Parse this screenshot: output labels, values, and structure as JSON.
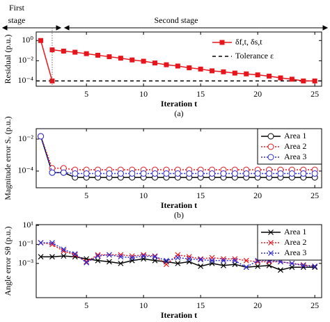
{
  "chart_data": [
    {
      "type": "line",
      "panel_label": "(a)",
      "xlabel": "Iteration t",
      "ylabel": "Residual (p.u.)",
      "annotations": [
        "First",
        "stage",
        "Second stage"
      ],
      "stage_boundary": 2,
      "log_y": true,
      "xlim": [
        0.6,
        25.6
      ],
      "xticks": [
        5,
        10,
        15,
        20,
        25
      ],
      "ylim": [
        3e-05,
        7
      ],
      "yticks": [
        {
          "value": 1,
          "label": "10⁰"
        },
        {
          "value": 0.01,
          "label": "10⁻²"
        },
        {
          "value": 0.0001,
          "label": "10⁻⁴"
        }
      ],
      "legend": "upper right",
      "x": [
        1,
        2,
        2,
        2,
        3,
        4,
        5,
        6,
        7,
        8,
        9,
        10,
        11,
        12,
        13,
        14,
        15,
        16,
        17,
        18,
        19,
        20,
        21,
        22,
        23,
        24,
        25
      ],
      "series": [
        {
          "name": "δf,t, δs,t",
          "color": "#e8141c",
          "marker": "square",
          "dash": false,
          "values": [
            1,
            0.0001,
            null,
            0.12,
            0.09,
            0.07,
            0.05,
            0.035,
            0.025,
            0.018,
            0.012,
            0.009,
            0.006,
            0.004,
            0.003,
            0.002,
            0.0015,
            0.001,
            0.0008,
            0.0006,
            0.0005,
            0.0004,
            0.0003,
            0.0002,
            0.00015,
            0.0001,
            0.0001
          ]
        }
      ],
      "reference_lines": [
        {
          "name": "Tolerance ε",
          "value": 0.0001,
          "color": "#000000"
        }
      ]
    },
    {
      "type": "line",
      "panel_label": "(b)",
      "xlabel": "Iteration t",
      "ylabel": "Magnitude error Sᵥ (p.u.)",
      "log_y": true,
      "xlim": [
        0.6,
        25.6
      ],
      "xticks": [
        5,
        10,
        15,
        20,
        25
      ],
      "ylim": [
        9e-06,
        0.045
      ],
      "yticks": [
        {
          "value": 0.01,
          "label": "10⁻²"
        },
        {
          "value": 0.0001,
          "label": "10⁻⁴"
        }
      ],
      "legend": "upper right",
      "x": [
        1,
        2,
        3,
        4,
        5,
        6,
        7,
        8,
        9,
        10,
        11,
        12,
        13,
        14,
        15,
        16,
        17,
        18,
        19,
        20,
        21,
        22,
        23,
        24,
        25
      ],
      "series": [
        {
          "name": "Area 1",
          "color": "#000000",
          "marker": "circle",
          "dash": false,
          "values": [
            0.015,
            8e-05,
            8e-05,
            4e-05,
            4e-05,
            4e-05,
            4e-05,
            4e-05,
            4e-05,
            4e-05,
            4e-05,
            4e-05,
            4e-05,
            4e-05,
            4e-05,
            4e-05,
            4e-05,
            4e-05,
            4e-05,
            4e-05,
            4e-05,
            4e-05,
            4e-05,
            4e-05,
            4e-05
          ]
        },
        {
          "name": "Area 2",
          "color": "#e8141c",
          "marker": "circle",
          "dash": true,
          "values": [
            0.015,
            0.00015,
            0.00015,
            0.00012,
            0.00012,
            0.00012,
            0.00012,
            0.00012,
            0.00012,
            0.00012,
            0.00012,
            0.00012,
            0.00012,
            0.00012,
            0.00012,
            0.00012,
            0.00012,
            0.00012,
            0.00012,
            0.00012,
            0.00012,
            0.00012,
            0.00012,
            0.00012,
            0.00012
          ]
        },
        {
          "name": "Area 3",
          "color": "#2a2ad4",
          "marker": "circle",
          "dash": true,
          "values": [
            0.015,
            8e-05,
            8e-05,
            7e-05,
            7e-05,
            7e-05,
            7e-05,
            7e-05,
            7e-05,
            7e-05,
            7e-05,
            7e-05,
            7e-05,
            7e-05,
            7e-05,
            7e-05,
            7e-05,
            7e-05,
            7e-05,
            7e-05,
            7e-05,
            7e-05,
            7e-05,
            7e-05,
            7e-05
          ]
        }
      ]
    },
    {
      "type": "line",
      "panel_label": "(c)",
      "xlabel": "Iteration t",
      "ylabel": "Angle error Sθ (p.u.)",
      "log_y": true,
      "xlim": [
        0.6,
        25.6
      ],
      "xticks": [
        5,
        10,
        15,
        20,
        25
      ],
      "ylim": [
        2.5e-07,
        12
      ],
      "yticks": [
        {
          "value": 10,
          "label": "10¹"
        },
        {
          "value": 0.1,
          "label": "10⁻¹"
        },
        {
          "value": 0.001,
          "label": "10⁻³"
        }
      ],
      "legend": "upper right",
      "x": [
        1,
        2,
        3,
        4,
        5,
        6,
        7,
        8,
        9,
        10,
        11,
        12,
        13,
        14,
        15,
        16,
        17,
        18,
        19,
        20,
        21,
        22,
        23,
        24,
        25
      ],
      "series": [
        {
          "name": "Area 1",
          "color": "#000000",
          "marker": "x",
          "dash": false,
          "values": [
            0.005,
            0.005,
            0.006,
            0.005,
            0.003,
            0.002,
            0.0015,
            0.001,
            0.002,
            0.003,
            0.002,
            0.0015,
            0.001,
            0.0015,
            0.0005,
            0.001,
            0.0006,
            0.0008,
            0.0004,
            0.0005,
            0.0006,
            0.0002,
            0.0004,
            0.0004,
            0.0004
          ]
        },
        {
          "name": "Area 2",
          "color": "#e8141c",
          "marker": "x",
          "dash": true,
          "values": [
            0.15,
            0.1,
            0.02,
            0.008,
            0.0015,
            0.008,
            0.008,
            0.008,
            0.006,
            0.008,
            0.006,
            0.0008,
            0.008,
            0.005,
            0.003,
            0.004,
            0.003,
            0.003,
            0.002,
            0.0015,
            0.0015,
            0.0015,
            0.001,
            0.0007,
            0.0005
          ]
        },
        {
          "name": "Area 3",
          "color": "#2a2ad4",
          "marker": "x",
          "dash": true,
          "values": [
            0.15,
            0.15,
            0.03,
            0.01,
            0.0012,
            0.006,
            0.008,
            0.005,
            0.004,
            0.006,
            0.005,
            0.002,
            0.004,
            0.003,
            0.0025,
            0.002,
            0.002,
            0.002,
            0.0004,
            0.002,
            0.002,
            0.0015,
            0.001,
            0.0006,
            0.0005
          ]
        }
      ]
    }
  ]
}
